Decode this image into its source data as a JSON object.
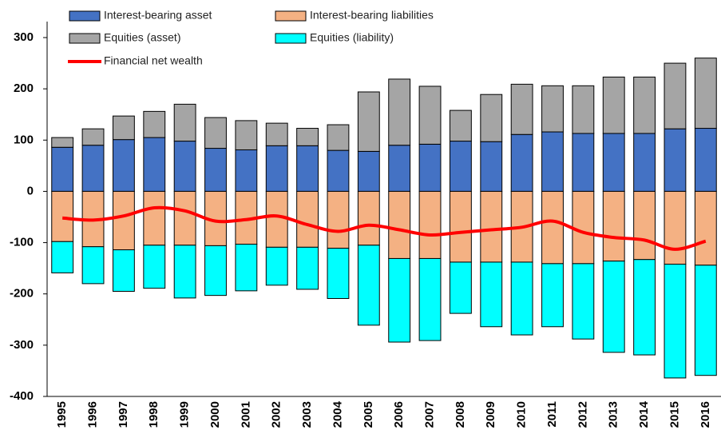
{
  "chart_data": {
    "type": "bar",
    "categories": [
      "1995",
      "1996",
      "1997",
      "1998",
      "1999",
      "2000",
      "2001",
      "2002",
      "2003",
      "2004",
      "2005",
      "2006",
      "2007",
      "2008",
      "2009",
      "2010",
      "2011",
      "2012",
      "2013",
      "2014",
      "2015",
      "2016"
    ],
    "series": [
      {
        "name": "Interest-bearing asset",
        "color": "#4472c4",
        "values": [
          86,
          90,
          101,
          105,
          98,
          84,
          81,
          89,
          89,
          80,
          78,
          90,
          92,
          98,
          97,
          111,
          116,
          113,
          113,
          113,
          122,
          123
        ]
      },
      {
        "name": "Interest-bearing liabilities",
        "color": "#f4b183",
        "values": [
          -98,
          -108,
          -114,
          -105,
          -105,
          -106,
          -103,
          -109,
          -109,
          -111,
          -105,
          -131,
          -131,
          -138,
          -138,
          -138,
          -141,
          -141,
          -136,
          -133,
          -142,
          -144
        ]
      },
      {
        "name": "Equities (asset)",
        "color": "#a5a5a5",
        "values": [
          19,
          32,
          46,
          51,
          72,
          60,
          57,
          44,
          34,
          50,
          116,
          129,
          113,
          60,
          92,
          98,
          90,
          93,
          110,
          110,
          128,
          137
        ]
      },
      {
        "name": "Equities (liability)",
        "color": "#00ffff",
        "values": [
          -61,
          -72,
          -81,
          -84,
          -103,
          -97,
          -91,
          -74,
          -82,
          -98,
          -156,
          -163,
          -160,
          -100,
          -126,
          -142,
          -123,
          -147,
          -178,
          -186,
          -222,
          -215
        ]
      },
      {
        "name": "Financial net wealth",
        "type": "line",
        "color": "#ff0000",
        "values": [
          -52,
          -56,
          -48,
          -32,
          -38,
          -58,
          -55,
          -48,
          -65,
          -78,
          -66,
          -75,
          -85,
          -80,
          -75,
          -70,
          -58,
          -80,
          -90,
          -95,
          -113,
          -97
        ]
      }
    ],
    "ylim": [
      -400,
      300
    ],
    "yticks": [
      -400,
      -300,
      -200,
      -100,
      0,
      100,
      200,
      300
    ]
  }
}
